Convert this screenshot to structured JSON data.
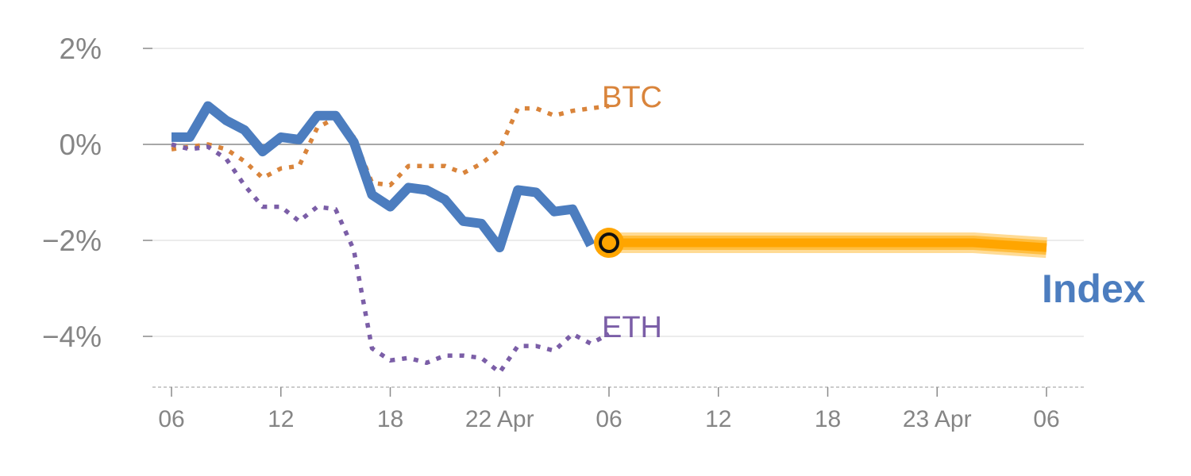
{
  "chart_data": {
    "type": "line",
    "title": "",
    "xlabel": "",
    "ylabel": "",
    "ylim": [
      -5,
      2
    ],
    "xlim": [
      "2025-04-21T06:00",
      "2025-04-23T06:00"
    ],
    "y_ticks": [
      2,
      0,
      -2,
      -4
    ],
    "y_tick_labels": [
      "2%",
      "0%",
      "−2%",
      "−4%"
    ],
    "x_ticks": [
      "2025-04-21T06:00",
      "2025-04-21T12:00",
      "2025-04-21T18:00",
      "2025-04-22T00:00",
      "2025-04-22T06:00",
      "2025-04-22T12:00",
      "2025-04-22T18:00",
      "2025-04-23T00:00",
      "2025-04-23T06:00"
    ],
    "x_tick_labels": [
      "06",
      "12",
      "18",
      "22 Apr",
      "06",
      "12",
      "18",
      "23 Apr",
      "06"
    ],
    "grid": true,
    "zero_line": true,
    "series": [
      {
        "name": "BTC",
        "style": "dotted",
        "color": "#d9843b",
        "x": [
          "2025-04-21T06:00",
          "2025-04-21T07:00",
          "2025-04-21T08:00",
          "2025-04-21T09:00",
          "2025-04-21T10:00",
          "2025-04-21T11:00",
          "2025-04-21T12:00",
          "2025-04-21T13:00",
          "2025-04-21T14:00",
          "2025-04-21T15:00",
          "2025-04-21T16:00",
          "2025-04-21T17:00",
          "2025-04-21T18:00",
          "2025-04-21T19:00",
          "2025-04-21T20:00",
          "2025-04-21T21:00",
          "2025-04-21T22:00",
          "2025-04-21T23:00",
          "2025-04-22T00:00",
          "2025-04-22T01:00",
          "2025-04-22T02:00",
          "2025-04-22T03:00",
          "2025-04-22T04:00",
          "2025-04-22T05:00",
          "2025-04-22T06:00"
        ],
        "values": [
          -0.1,
          -0.05,
          0.0,
          -0.1,
          -0.35,
          -0.7,
          -0.5,
          -0.45,
          0.35,
          0.55,
          0.15,
          -0.8,
          -0.85,
          -0.45,
          -0.45,
          -0.45,
          -0.6,
          -0.4,
          -0.1,
          0.75,
          0.75,
          0.6,
          0.7,
          0.75,
          0.8
        ]
      },
      {
        "name": "ETH",
        "style": "dotted",
        "color": "#7b5ea7",
        "x": [
          "2025-04-21T06:00",
          "2025-04-21T07:00",
          "2025-04-21T08:00",
          "2025-04-21T09:00",
          "2025-04-21T10:00",
          "2025-04-21T11:00",
          "2025-04-21T12:00",
          "2025-04-21T13:00",
          "2025-04-21T14:00",
          "2025-04-21T15:00",
          "2025-04-21T16:00",
          "2025-04-21T17:00",
          "2025-04-21T18:00",
          "2025-04-21T19:00",
          "2025-04-21T20:00",
          "2025-04-21T21:00",
          "2025-04-21T22:00",
          "2025-04-21T23:00",
          "2025-04-22T00:00",
          "2025-04-22T01:00",
          "2025-04-22T02:00",
          "2025-04-22T03:00",
          "2025-04-22T04:00",
          "2025-04-22T05:00",
          "2025-04-22T06:00"
        ],
        "values": [
          0.0,
          -0.1,
          -0.05,
          -0.3,
          -0.85,
          -1.3,
          -1.3,
          -1.6,
          -1.3,
          -1.35,
          -2.2,
          -4.25,
          -4.5,
          -4.45,
          -4.55,
          -4.4,
          -4.4,
          -4.45,
          -4.75,
          -4.2,
          -4.2,
          -4.3,
          -3.95,
          -4.15,
          -3.95
        ]
      },
      {
        "name": "Index",
        "style": "solid",
        "color": "#4c7dbf",
        "x": [
          "2025-04-21T06:00",
          "2025-04-21T07:00",
          "2025-04-21T08:00",
          "2025-04-21T09:00",
          "2025-04-21T10:00",
          "2025-04-21T11:00",
          "2025-04-21T12:00",
          "2025-04-21T13:00",
          "2025-04-21T14:00",
          "2025-04-21T15:00",
          "2025-04-21T16:00",
          "2025-04-21T17:00",
          "2025-04-21T18:00",
          "2025-04-21T19:00",
          "2025-04-21T20:00",
          "2025-04-21T21:00",
          "2025-04-21T22:00",
          "2025-04-21T23:00",
          "2025-04-22T00:00",
          "2025-04-22T01:00",
          "2025-04-22T02:00",
          "2025-04-22T03:00",
          "2025-04-22T04:00",
          "2025-04-22T05:00"
        ],
        "values": [
          0.15,
          0.15,
          0.8,
          0.5,
          0.3,
          -0.15,
          0.15,
          0.1,
          0.6,
          0.6,
          0.05,
          -1.05,
          -1.3,
          -0.9,
          -0.95,
          -1.15,
          -1.6,
          -1.65,
          -2.15,
          -0.95,
          -1.0,
          -1.4,
          -1.35,
          -2.1
        ]
      },
      {
        "name": "",
        "style": "solid-thick",
        "color": "#ffa500",
        "x": [
          "2025-04-22T06:00",
          "2025-04-22T12:00",
          "2025-04-22T18:00",
          "2025-04-23T00:00",
          "2025-04-23T02:00",
          "2025-04-23T06:00"
        ],
        "values": [
          -2.05,
          -2.05,
          -2.05,
          -2.05,
          -2.05,
          -2.15
        ]
      }
    ],
    "marker": {
      "x": "2025-04-22T06:00",
      "y": -2.05
    },
    "labels": {
      "btc": "BTC",
      "eth": "ETH",
      "index": "Index"
    }
  }
}
